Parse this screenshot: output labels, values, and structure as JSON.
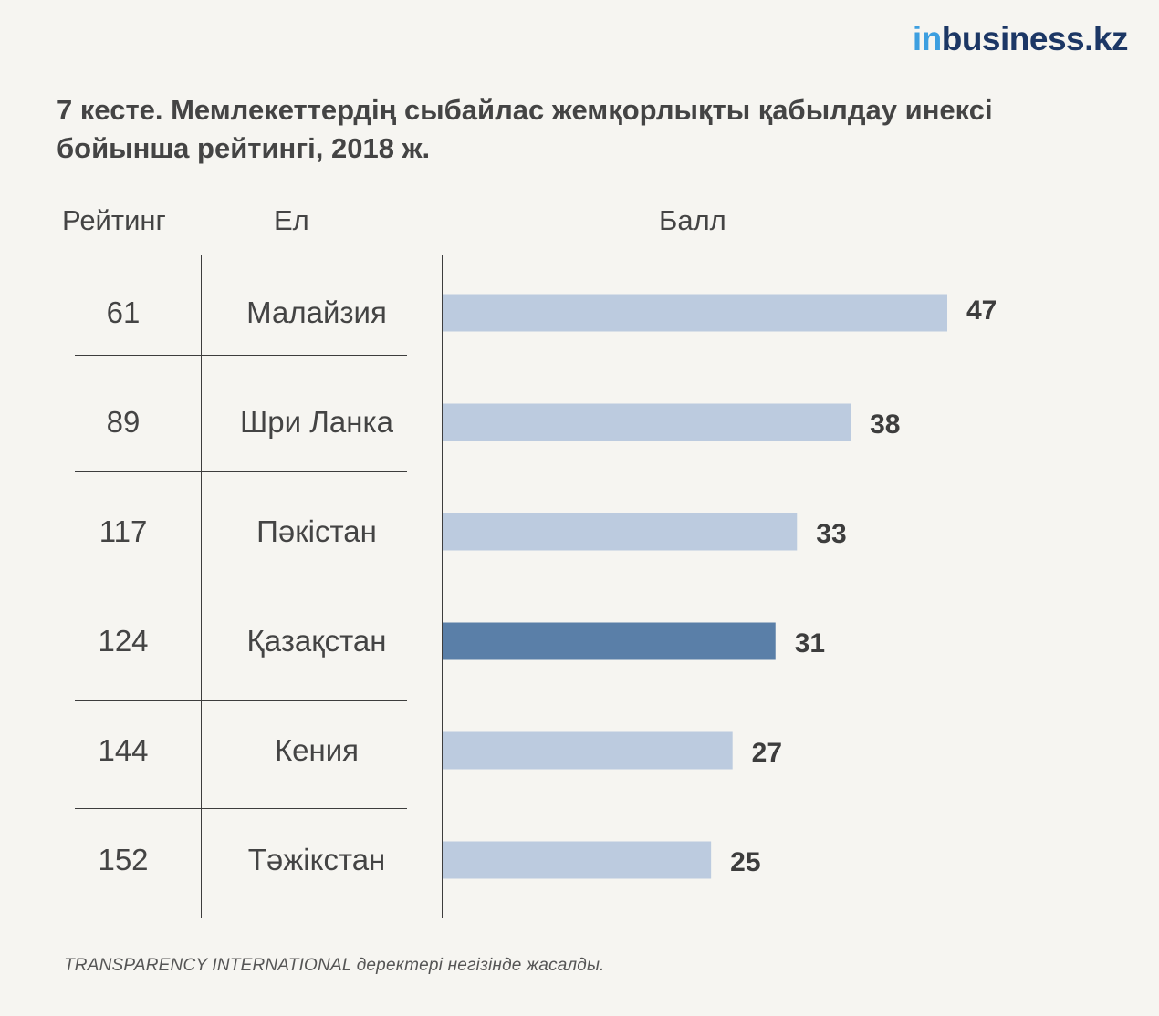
{
  "logo": {
    "prefix": "in",
    "rest": "business.kz",
    "prefix_color": "#3d9fe0",
    "rest_color": "#1c3765"
  },
  "title": "7 кесте. Мемлекеттердің сыбайлас жемқорлықты қабылдау инексі бойынша рейтингі, 2018 ж.",
  "headers": {
    "rank": "Рейтинг",
    "country": "Ел",
    "score": "Балл"
  },
  "source": "TRANSPARENCY INTERNATIONAL деректері негізінде жасалды.",
  "colors": {
    "bar": "#bccbdf",
    "highlight": "#5a7fa8",
    "background": "#f6f5f1"
  },
  "chart_data": {
    "type": "bar",
    "orientation": "horizontal",
    "categories": [
      "Малайзия",
      "Шри Ланка",
      "Пәкістан",
      "Қазақстан",
      "Кения",
      "Тәжікстан"
    ],
    "ranks": [
      "61",
      "89",
      "117",
      "124",
      "144",
      "152"
    ],
    "values": [
      47,
      38,
      33,
      31,
      27,
      25
    ],
    "highlight": "Қазақстан",
    "xlim": [
      0,
      47
    ],
    "grid": false,
    "legend": "none"
  }
}
